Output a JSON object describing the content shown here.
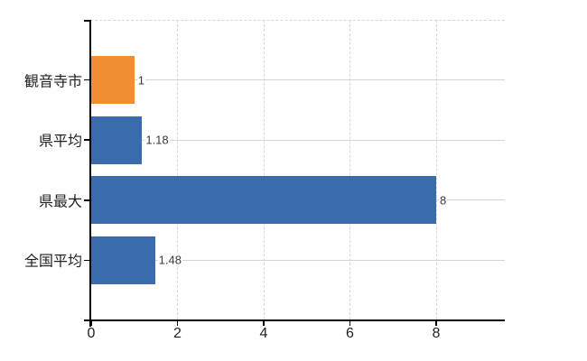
{
  "chart_data": {
    "type": "bar",
    "orientation": "horizontal",
    "title": "",
    "xlabel": "",
    "ylabel": "",
    "categories": [
      "観音寺市",
      "県平均",
      "県最大",
      "全国平均"
    ],
    "values": [
      1,
      1.18,
      8,
      1.48
    ],
    "value_labels": [
      "1",
      "1.18",
      "8",
      "1.48"
    ],
    "bar_colors": [
      "#ef8e33",
      "#3a6bac",
      "#3a6bac",
      "#3a6bac"
    ],
    "x_ticks": [
      0,
      2,
      4,
      6,
      8
    ],
    "x_tick_labels": [
      "0",
      "2",
      "4",
      "6",
      "8"
    ],
    "xlim": [
      0,
      9.6
    ],
    "grid": true,
    "legend": false
  },
  "colors": {
    "bar_highlight": "#ef8e33",
    "bar_default": "#3a6bac",
    "axis": "#000000",
    "grid_horizontal": "#cfd8cf",
    "grid_vertical": "#d6d6da",
    "plot_top_border": "#d6d6da",
    "category_text": "#1f1f1f",
    "value_text": "#3a3a3a",
    "background": "#ffffff"
  }
}
